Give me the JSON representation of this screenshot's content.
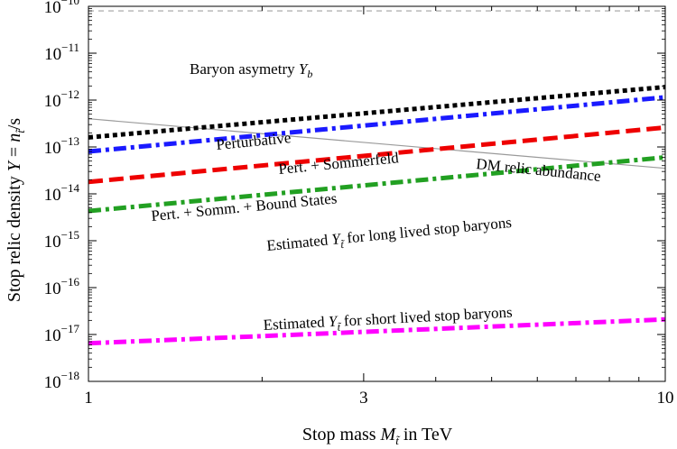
{
  "chart_data": {
    "type": "line",
    "xscale": "log",
    "yscale": "log",
    "xlim": [
      1,
      10
    ],
    "ylim": [
      1e-18,
      1e-10
    ],
    "xlabel": "Stop mass M_t̃ in TeV",
    "ylabel": "Stop relic density Y = n_t̃/s",
    "x_ticks": [
      {
        "value": 1,
        "label": "1"
      },
      {
        "value": 3,
        "label": "3"
      },
      {
        "value": 10,
        "label": "10"
      }
    ],
    "y_ticks": [
      {
        "value": 1e-10,
        "base": "10",
        "exp": "−10"
      },
      {
        "value": 1e-11,
        "base": "10",
        "exp": "−11"
      },
      {
        "value": 1e-12,
        "base": "10",
        "exp": "−12"
      },
      {
        "value": 1e-13,
        "base": "10",
        "exp": "−13"
      },
      {
        "value": 1e-14,
        "base": "10",
        "exp": "−14"
      },
      {
        "value": 1e-15,
        "base": "10",
        "exp": "−15"
      },
      {
        "value": 1e-16,
        "base": "10",
        "exp": "−16"
      },
      {
        "value": 1e-17,
        "base": "10",
        "exp": "−17"
      },
      {
        "value": 1e-18,
        "base": "10",
        "exp": "−18"
      }
    ],
    "series": [
      {
        "key": "baryon",
        "x": [
          1,
          10
        ],
        "y": [
          8e-11,
          8e-11
        ],
        "color": "#a0a0a0",
        "width": 1.2,
        "dash": "6,5"
      },
      {
        "key": "dm",
        "x": [
          1,
          10
        ],
        "y": [
          4e-13,
          3.5e-14
        ],
        "color": "#9a9a9a",
        "width": 1.2,
        "dash": ""
      },
      {
        "key": "pert",
        "x": [
          1,
          10
        ],
        "y": [
          1.6e-13,
          1.9e-12
        ],
        "color": "#000000",
        "width": 5,
        "dash": "5,4"
      },
      {
        "key": "sommerfeld",
        "x": [
          1,
          10
        ],
        "y": [
          8e-14,
          1.15e-12
        ],
        "color": "#1a1aff",
        "width": 5,
        "dash": "14,5,4,5"
      },
      {
        "key": "bound",
        "x": [
          1,
          10
        ],
        "y": [
          1.8e-14,
          2.6e-13
        ],
        "color": "#ee0000",
        "width": 5,
        "dash": "16,7"
      },
      {
        "key": "long",
        "x": [
          1,
          10
        ],
        "y": [
          4.3e-15,
          6e-14
        ],
        "color": "#22a022",
        "width": 5,
        "dash": "14,5,4,5"
      },
      {
        "key": "short",
        "x": [
          1,
          10
        ],
        "y": [
          6.5e-18,
          2.1e-17
        ],
        "color": "#ff00ff",
        "width": 5,
        "dash": "14,5,4,5"
      }
    ],
    "annotations": {
      "baryon": {
        "text": "Baryon asymetry ",
        "var": "Y",
        "sub": "b",
        "color": "#000000"
      },
      "pert": {
        "text": "Perturbative",
        "color": "#000000"
      },
      "sommerfeld": {
        "text": "Pert. + Sommerfeld",
        "color": "#1a1aff"
      },
      "dm": {
        "text": "DM relic abundance",
        "color": "#888888"
      },
      "bound": {
        "text": "Pert. + Somm. + Bound States",
        "color": "#ee0000"
      },
      "long": {
        "pre": "Estimated ",
        "var": "Y",
        "sub": "t̃",
        "post": " for long lived stop baryons",
        "color": "#22a022"
      },
      "short": {
        "pre": "Estimated ",
        "var": "Y",
        "sub": "t̃",
        "post": " for short lived stop baryons",
        "color": "#ff00ff"
      }
    },
    "axis_text": {
      "x_pre": "Stop mass ",
      "x_var": "M",
      "x_sub": "t̃",
      "x_post": " in TeV",
      "y_pre": "Stop relic density ",
      "y_var": "Y",
      "y_mid": " = ",
      "y_var2": "n",
      "y_sub": "t̃",
      "y_post": "/s"
    }
  }
}
